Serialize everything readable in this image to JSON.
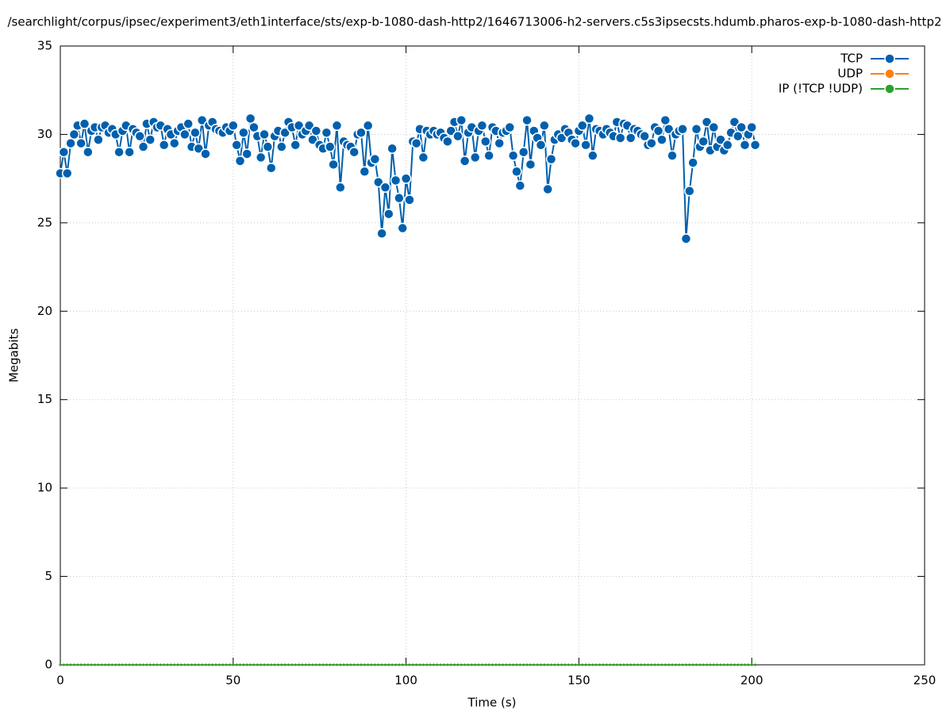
{
  "chart_data": {
    "type": "line",
    "title": "/searchlight/corpus/ipsec/experiment3/eth1interface/sts/exp-b-1080-dash-http2/1646713006-h2-servers.c5s3ipsecsts.hdumb.pharos-exp-b-1080-dash-http2",
    "x_label": "Time (s)",
    "y_label": "Megabits",
    "xlim": [
      0,
      250
    ],
    "xticks": [
      0,
      50,
      100,
      150,
      200,
      250
    ],
    "ylim": [
      0,
      35
    ],
    "yticks": [
      0,
      5,
      10,
      15,
      20,
      25,
      30,
      35
    ],
    "grid": true,
    "legend": "upper right",
    "x": [
      0,
      1,
      2,
      3,
      4,
      5,
      6,
      7,
      8,
      9,
      10,
      11,
      12,
      13,
      14,
      15,
      16,
      17,
      18,
      19,
      20,
      21,
      22,
      23,
      24,
      25,
      26,
      27,
      28,
      29,
      30,
      31,
      32,
      33,
      34,
      35,
      36,
      37,
      38,
      39,
      40,
      41,
      42,
      43,
      44,
      45,
      46,
      47,
      48,
      49,
      50,
      51,
      52,
      53,
      54,
      55,
      56,
      57,
      58,
      59,
      60,
      61,
      62,
      63,
      64,
      65,
      66,
      67,
      68,
      69,
      70,
      71,
      72,
      73,
      74,
      75,
      76,
      77,
      78,
      79,
      80,
      81,
      82,
      83,
      84,
      85,
      86,
      87,
      88,
      89,
      90,
      91,
      92,
      93,
      94,
      95,
      96,
      97,
      98,
      99,
      100,
      101,
      102,
      103,
      104,
      105,
      106,
      107,
      108,
      109,
      110,
      111,
      112,
      113,
      114,
      115,
      116,
      117,
      118,
      119,
      120,
      121,
      122,
      123,
      124,
      125,
      126,
      127,
      128,
      129,
      130,
      131,
      132,
      133,
      134,
      135,
      136,
      137,
      138,
      139,
      140,
      141,
      142,
      143,
      144,
      145,
      146,
      147,
      148,
      149,
      150,
      151,
      152,
      153,
      154,
      155,
      156,
      157,
      158,
      159,
      160,
      161,
      162,
      163,
      164,
      165,
      166,
      167,
      168,
      169,
      170,
      171,
      172,
      173,
      174,
      175,
      176,
      177,
      178,
      179,
      180,
      181,
      182,
      183,
      184,
      185,
      186,
      187,
      188,
      189,
      190,
      191,
      192,
      193,
      194,
      195,
      196,
      197,
      198,
      199,
      200,
      201
    ],
    "series": [
      {
        "name": "TCP",
        "color": "#0060ad",
        "values": [
          27.8,
          29.0,
          27.8,
          29.5,
          30.0,
          30.5,
          29.5,
          30.6,
          29.0,
          30.2,
          30.4,
          29.7,
          30.4,
          30.5,
          30.1,
          30.3,
          30.0,
          29.0,
          30.2,
          30.5,
          29.0,
          30.3,
          30.1,
          29.9,
          29.3,
          30.6,
          29.7,
          30.7,
          30.4,
          30.5,
          29.4,
          30.3,
          30.0,
          29.5,
          30.2,
          30.4,
          30.0,
          30.6,
          29.3,
          30.1,
          29.2,
          30.8,
          28.9,
          30.5,
          30.7,
          30.3,
          30.2,
          30.1,
          30.4,
          30.2,
          30.5,
          29.4,
          28.5,
          30.1,
          28.9,
          30.9,
          30.4,
          29.9,
          28.7,
          30.0,
          29.3,
          28.1,
          29.9,
          30.2,
          29.3,
          30.1,
          30.7,
          30.4,
          29.4,
          30.5,
          30.0,
          30.2,
          30.5,
          29.7,
          30.2,
          29.4,
          29.2,
          30.1,
          29.3,
          28.3,
          30.5,
          27.0,
          29.6,
          29.4,
          29.3,
          29.0,
          30.0,
          30.1,
          27.9,
          30.5,
          28.4,
          28.6,
          27.3,
          24.4,
          27.0,
          25.5,
          29.2,
          27.4,
          26.4,
          24.7,
          27.5,
          26.3,
          29.6,
          29.5,
          30.3,
          28.7,
          30.2,
          30.0,
          30.2,
          30.0,
          30.1,
          29.8,
          29.6,
          30.2,
          30.7,
          29.9,
          30.8,
          28.5,
          30.1,
          30.4,
          28.7,
          30.2,
          30.5,
          29.6,
          28.8,
          30.4,
          30.2,
          29.5,
          30.1,
          30.2,
          30.4,
          28.8,
          27.9,
          27.1,
          29.0,
          30.8,
          28.3,
          30.2,
          29.8,
          29.4,
          30.5,
          26.9,
          28.6,
          29.7,
          30.0,
          29.8,
          30.3,
          30.1,
          29.7,
          29.5,
          30.2,
          30.5,
          29.4,
          30.9,
          28.8,
          30.3,
          30.2,
          30.0,
          30.3,
          30.1,
          29.9,
          30.7,
          29.8,
          30.6,
          30.5,
          29.8,
          30.3,
          30.2,
          30.0,
          29.9,
          29.4,
          29.5,
          30.4,
          30.2,
          29.7,
          30.8,
          30.3,
          28.8,
          30.0,
          30.2,
          30.3,
          24.1,
          26.8,
          28.4,
          30.3,
          29.3,
          29.6,
          30.7,
          29.1,
          30.4,
          29.3,
          29.7,
          29.1,
          29.4,
          30.1,
          30.7,
          29.9,
          30.4,
          29.4,
          30.0,
          30.4,
          29.4
        ]
      },
      {
        "name": "UDP",
        "color": "#ff7f0e",
        "values": [
          0,
          0,
          0,
          0,
          0,
          0,
          0,
          0,
          0,
          0,
          0,
          0,
          0,
          0,
          0,
          0,
          0,
          0,
          0,
          0,
          0,
          0,
          0,
          0,
          0,
          0,
          0,
          0,
          0,
          0,
          0,
          0,
          0,
          0,
          0,
          0,
          0,
          0,
          0,
          0,
          0,
          0,
          0,
          0,
          0,
          0,
          0,
          0,
          0,
          0,
          0,
          0,
          0,
          0,
          0,
          0,
          0,
          0,
          0,
          0,
          0,
          0,
          0,
          0,
          0,
          0,
          0,
          0,
          0,
          0,
          0,
          0,
          0,
          0,
          0,
          0,
          0,
          0,
          0,
          0,
          0,
          0,
          0,
          0,
          0,
          0,
          0,
          0,
          0,
          0,
          0,
          0,
          0,
          0,
          0,
          0,
          0,
          0,
          0,
          0,
          0,
          0,
          0,
          0,
          0,
          0,
          0,
          0,
          0,
          0,
          0,
          0,
          0,
          0,
          0,
          0,
          0,
          0,
          0,
          0,
          0,
          0,
          0,
          0,
          0,
          0,
          0,
          0,
          0,
          0,
          0,
          0,
          0,
          0,
          0,
          0,
          0,
          0,
          0,
          0,
          0,
          0,
          0,
          0,
          0,
          0,
          0,
          0,
          0,
          0,
          0,
          0,
          0,
          0,
          0,
          0,
          0,
          0,
          0,
          0,
          0,
          0,
          0,
          0,
          0,
          0,
          0,
          0,
          0,
          0,
          0,
          0,
          0,
          0,
          0,
          0,
          0,
          0,
          0,
          0,
          0,
          0,
          0,
          0,
          0,
          0,
          0,
          0,
          0,
          0,
          0,
          0,
          0,
          0,
          0,
          0,
          0,
          0,
          0,
          0,
          0,
          0
        ]
      },
      {
        "name": "IP (!TCP  !UDP)",
        "color": "#2ca02c",
        "values": [
          0,
          0,
          0,
          0,
          0,
          0,
          0,
          0,
          0,
          0,
          0,
          0,
          0,
          0,
          0,
          0,
          0,
          0,
          0,
          0,
          0,
          0,
          0,
          0,
          0,
          0,
          0,
          0,
          0,
          0,
          0,
          0,
          0,
          0,
          0,
          0,
          0,
          0,
          0,
          0,
          0,
          0,
          0,
          0,
          0,
          0,
          0,
          0,
          0,
          0,
          0,
          0,
          0,
          0,
          0,
          0,
          0,
          0,
          0,
          0,
          0,
          0,
          0,
          0,
          0,
          0,
          0,
          0,
          0,
          0,
          0,
          0,
          0,
          0,
          0,
          0,
          0,
          0,
          0,
          0,
          0,
          0,
          0,
          0,
          0,
          0,
          0,
          0,
          0,
          0,
          0,
          0,
          0,
          0,
          0,
          0,
          0,
          0,
          0,
          0,
          0,
          0,
          0,
          0,
          0,
          0,
          0,
          0,
          0,
          0,
          0,
          0,
          0,
          0,
          0,
          0,
          0,
          0,
          0,
          0,
          0,
          0,
          0,
          0,
          0,
          0,
          0,
          0,
          0,
          0,
          0,
          0,
          0,
          0,
          0,
          0,
          0,
          0,
          0,
          0,
          0,
          0,
          0,
          0,
          0,
          0,
          0,
          0,
          0,
          0,
          0,
          0,
          0,
          0,
          0,
          0,
          0,
          0,
          0,
          0,
          0,
          0,
          0,
          0,
          0,
          0,
          0,
          0,
          0,
          0,
          0,
          0,
          0,
          0,
          0,
          0,
          0,
          0,
          0,
          0,
          0,
          0,
          0,
          0,
          0,
          0,
          0,
          0,
          0,
          0,
          0,
          0,
          0,
          0,
          0,
          0,
          0,
          0,
          0,
          0,
          0,
          0
        ]
      }
    ]
  }
}
